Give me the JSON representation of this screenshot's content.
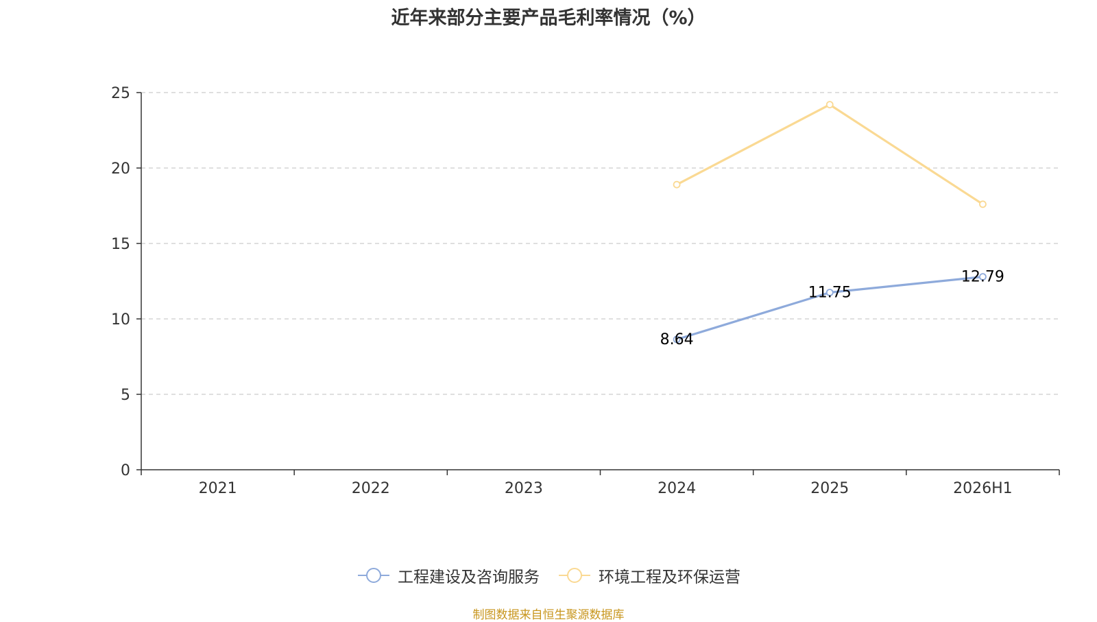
{
  "chart_data": {
    "type": "line",
    "title": "近年来部分主要产品毛利率情况（%）",
    "categories": [
      "2021",
      "2022",
      "2023",
      "2024",
      "2025",
      "2026H1"
    ],
    "ylim": [
      0,
      25
    ],
    "yticks": [
      0,
      5,
      10,
      15,
      20,
      25
    ],
    "grid": true,
    "legend": "bottom-center",
    "series": [
      {
        "name": "工程建设及咨询服务",
        "color": "#8eaadb",
        "values": [
          null,
          null,
          null,
          8.64,
          11.75,
          12.79
        ],
        "labels": [
          "",
          "",
          "",
          "8.64",
          "11.75",
          "12.79"
        ]
      },
      {
        "name": "环境工程及环保运营",
        "color": "#fad993",
        "values": [
          null,
          null,
          null,
          18.9,
          24.2,
          17.6
        ],
        "labels": [
          "",
          "",
          "",
          "",
          "",
          ""
        ]
      }
    ]
  },
  "source": "制图数据来自恒生聚源数据库"
}
